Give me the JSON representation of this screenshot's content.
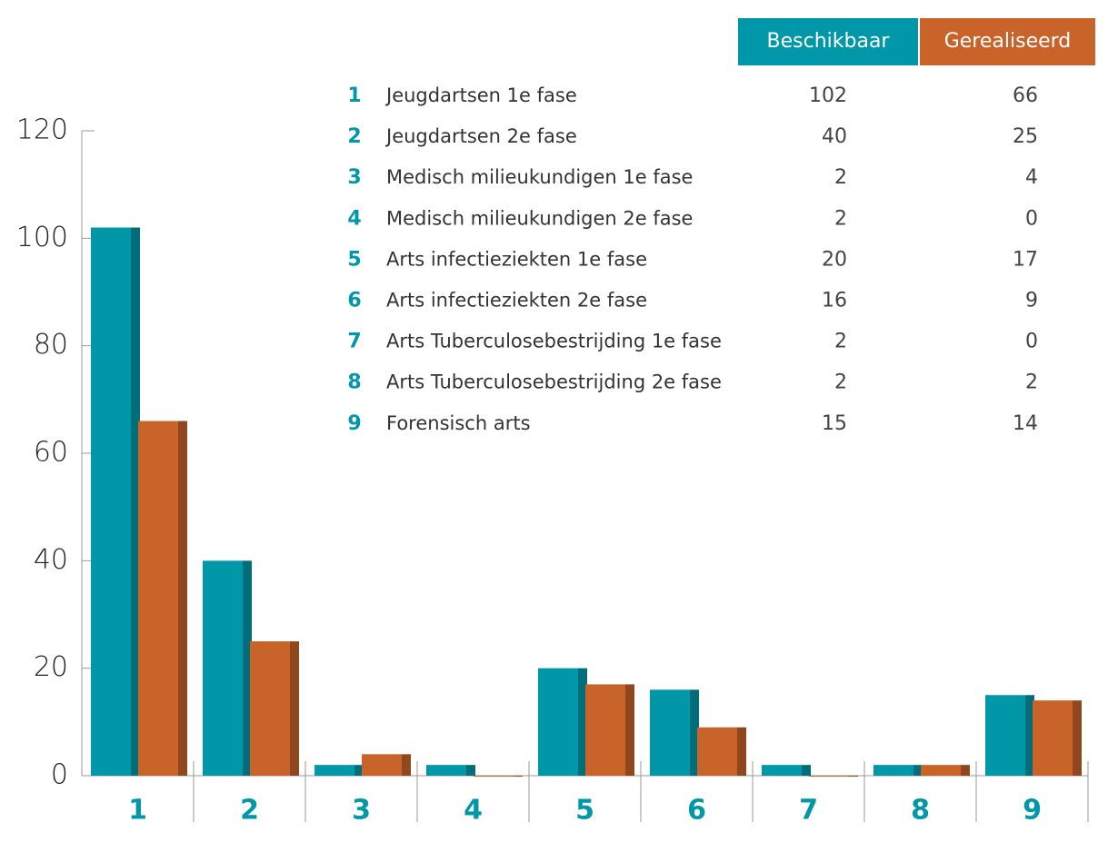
{
  "chart_data": {
    "type": "bar",
    "categories": [
      "1",
      "2",
      "3",
      "4",
      "5",
      "6",
      "7",
      "8",
      "9"
    ],
    "category_names": [
      "Jeugdartsen 1e fase",
      "Jeugdartsen 2e fase",
      "Medisch milieukundigen 1e fase",
      "Medisch milieukundigen 2e fase",
      "Arts infectieziekten 1e fase",
      "Arts infectieziekten 2e fase",
      "Arts Tuberculosebestrijding 1e fase",
      "Arts Tuberculosebestrijding 2e fase",
      "Forensisch arts"
    ],
    "series": [
      {
        "name": "Beschikbaar",
        "color": "#0097a9",
        "values": [
          102,
          40,
          2,
          2,
          20,
          16,
          2,
          2,
          15
        ]
      },
      {
        "name": "Gerealiseerd",
        "color": "#c8632a",
        "values": [
          66,
          25,
          4,
          0,
          17,
          9,
          0,
          2,
          14
        ]
      }
    ],
    "ylim": [
      0,
      120
    ],
    "yticks": [
      0,
      20,
      40,
      60,
      80,
      100,
      120
    ]
  }
}
